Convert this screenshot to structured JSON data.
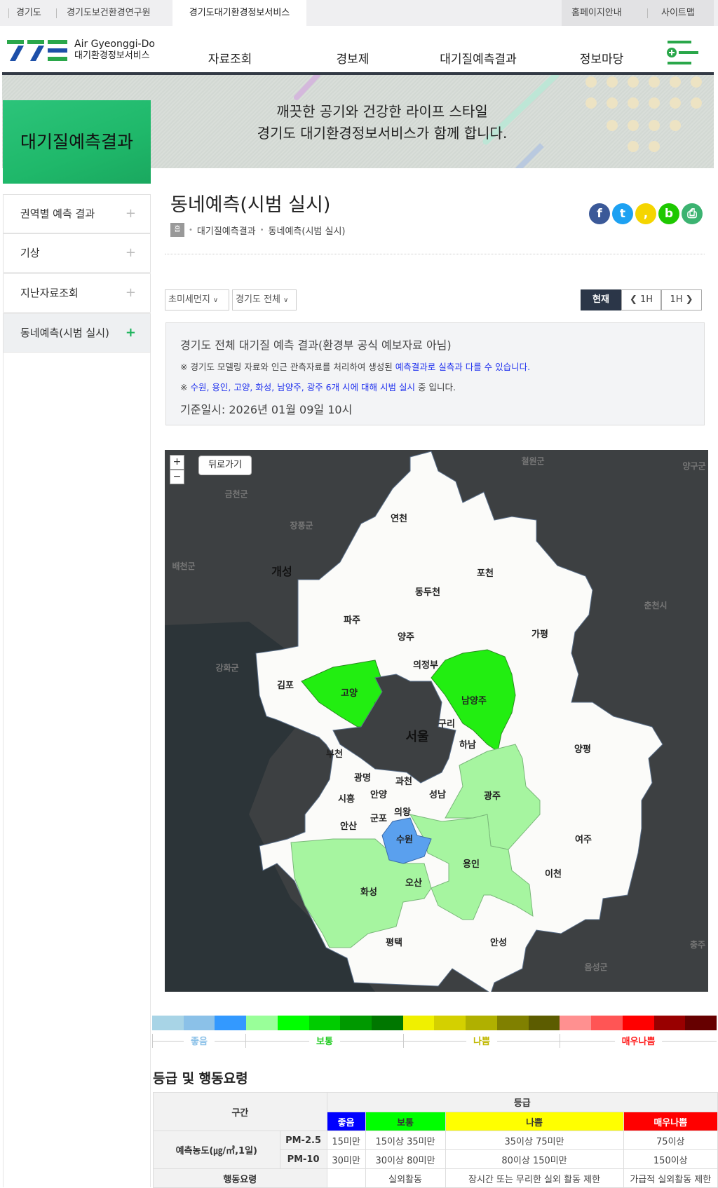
{
  "topbar": {
    "tabs": [
      "경기도",
      "경기도보건환경연구원",
      "경기도대기환경정보서비스"
    ],
    "right": [
      "홈페이지안내",
      "사이트맵"
    ]
  },
  "header": {
    "logo_en": "Air Gyeonggi-Do",
    "logo_ko": "대기환경정보서비스",
    "nav": [
      "자료조회",
      "경보제",
      "대기질예측결과",
      "정보마당"
    ],
    "menu_icon": "menu-plus-icon"
  },
  "banner": {
    "line1": "깨끗한 공기와 건강한 라이프 스타일",
    "line2": "경기도 대기환경정보서비스가 함께 합니다.",
    "section": "대기질예측결과"
  },
  "sidebar": {
    "items": [
      {
        "label": "권역별 예측 결과"
      },
      {
        "label": "기상"
      },
      {
        "label": "지난자료조회"
      },
      {
        "label": "동네예측(시범 실시)",
        "active": true
      }
    ]
  },
  "page": {
    "title": "동네예측(시범 실시)",
    "breadcrumb": [
      "홈",
      "대기질예측결과",
      "동네예측(시범 실시)"
    ],
    "sns": [
      {
        "icon": "facebook-icon",
        "glyph": "f",
        "color": "#3b5998"
      },
      {
        "icon": "twitter-icon",
        "glyph": "t",
        "color": "#1da1f2"
      },
      {
        "icon": "kakaostory-icon",
        "glyph": ",",
        "color": "#f5d500"
      },
      {
        "icon": "band-icon",
        "glyph": "b",
        "color": "#1ec800"
      },
      {
        "icon": "print-icon",
        "glyph": "⎙",
        "color": "#3cb371"
      }
    ]
  },
  "filters": {
    "pollutant": "초미세먼지",
    "region": "경기도 전체"
  },
  "time_buttons": {
    "now": "현재",
    "prev": "1H",
    "next": "1H"
  },
  "info": {
    "title": "경기도 전체 대기질 예측 결과(환경부 공식 예보자료 아님)",
    "note1_prefix": "※ 경기도 모델링 자료와 인근 관측자료를 처리하여 생성된 ",
    "note1_highlight": "예측결과로 실측과 다를 수 있습니다.",
    "note2_prefix": "※ ",
    "note2_highlight": "수원, 용인, 고양, 화성, 남양주, 광주 6개 시에 대해 시범 실시",
    "note2_suffix": " 중 입니다.",
    "base_time": "기준일시: 2026년 01월 09일 10시"
  },
  "map": {
    "zoom_in": "+",
    "zoom_out": "−",
    "back": "뒤로가기",
    "region_colors": {
      "고양": "#22ee11",
      "남양주": "#22ee11",
      "광주": "#a6f5a0",
      "용인": "#a6f5a0",
      "화성": "#a6f5a0",
      "수원": "#5aa0ee"
    },
    "labels": [
      "연천",
      "포천",
      "동두천",
      "파주",
      "양주",
      "가평",
      "의정부",
      "김포",
      "고양",
      "남양주",
      "구리",
      "서울",
      "하남",
      "양평",
      "부천",
      "광명",
      "과천",
      "시흥",
      "안양",
      "성남",
      "광주",
      "의왕",
      "군포",
      "안산",
      "수원",
      "여주",
      "용인",
      "이천",
      "오산",
      "화성",
      "평택",
      "안성"
    ],
    "base_labels": [
      "철원군",
      "양구군",
      "금천군",
      "장풍군",
      "배천군",
      "개성",
      "춘천시",
      "강화군",
      "음성군",
      "충주"
    ]
  },
  "legend": {
    "colors": [
      "#a8d4e6",
      "#8bc1e8",
      "#3399ff",
      "#99ff99",
      "#00ff00",
      "#00cc00",
      "#009900",
      "#007700",
      "#f0f000",
      "#d4d000",
      "#b0b000",
      "#808000",
      "#5c5c00",
      "#ff9090",
      "#ff5555",
      "#ff0000",
      "#990000",
      "#660000"
    ],
    "grades": [
      {
        "label": "좋음",
        "color": "#8bc1e8"
      },
      {
        "label": "보통",
        "color": "#22cc22"
      },
      {
        "label": "나쁨",
        "color": "#c0b800"
      },
      {
        "label": "매우나쁨",
        "color": "#ff2222"
      }
    ]
  },
  "grade_table": {
    "heading": "등급 및 행동요령",
    "section_label": "구간",
    "grade_label": "등급",
    "grades": [
      {
        "label": "좋음",
        "bg": "#0000ff",
        "fg": "#ffffff"
      },
      {
        "label": "보통",
        "bg": "#00ff00",
        "fg": "#333333"
      },
      {
        "label": "나쁨",
        "bg": "#ffff00",
        "fg": "#333333"
      },
      {
        "label": "매우나쁨",
        "bg": "#ff0000",
        "fg": "#ffffff"
      }
    ],
    "conc_label": "예측농도(㎍/㎥,1일)",
    "rows": [
      {
        "name": "PM-2.5",
        "values": [
          "15미만",
          "15이상 35미만",
          "35이상 75미만",
          "75이상"
        ]
      },
      {
        "name": "PM-10",
        "values": [
          "30미만",
          "30이상 80미만",
          "80이상 150미만",
          "150이상"
        ]
      }
    ],
    "action_label": "행동요령",
    "actions": [
      "",
      "실외활동",
      "장시간 또는 무리한 실외 활동 제한",
      "가급적 실외활동 제한"
    ]
  }
}
